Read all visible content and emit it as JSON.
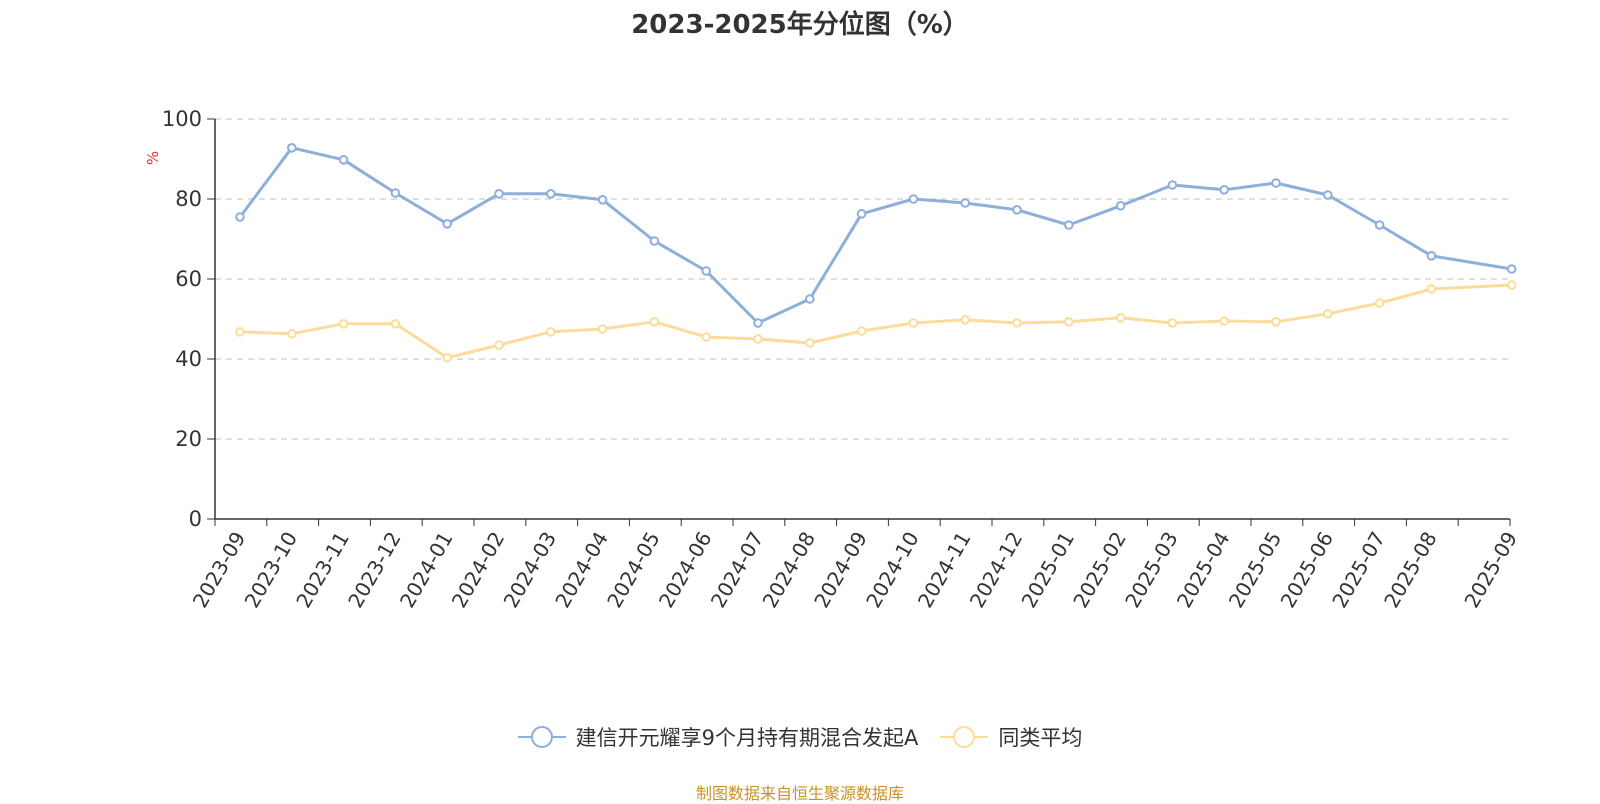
{
  "chart_data": {
    "type": "line",
    "title": "2023-2025年分位图（%）",
    "ylabel": "%",
    "ylim": [
      0,
      100
    ],
    "yticks": [
      0,
      20,
      40,
      60,
      80,
      100
    ],
    "grid": true,
    "legend_position": "bottom",
    "categories": [
      "2023-09",
      "2023-10",
      "2023-11",
      "2023-12",
      "2024-01",
      "2024-02",
      "2024-03",
      "2024-04",
      "2024-05",
      "2024-06",
      "2024-07",
      "2024-08",
      "2024-09",
      "2024-10",
      "2024-11",
      "2024-12",
      "2025-01",
      "2025-02",
      "2025-03",
      "2025-04",
      "2025-05",
      "2025-06",
      "2025-07",
      "2025-08",
      "2025-09"
    ],
    "x_positions": [
      0,
      1,
      2,
      3,
      4,
      5,
      6,
      7,
      8,
      9,
      10,
      11,
      12,
      13,
      14,
      15,
      16,
      17,
      18,
      19,
      20,
      21,
      22,
      23,
      24.55
    ],
    "series": [
      {
        "name": "建信开元耀享9个月持有期混合发起A",
        "color": "#8eaedb",
        "values": [
          75.5,
          92.8,
          89.8,
          81.5,
          73.8,
          81.3,
          81.3,
          79.8,
          69.5,
          62.0,
          49.0,
          55.0,
          76.3,
          80.0,
          79.0,
          77.3,
          73.5,
          78.3,
          83.5,
          82.3,
          84.0,
          81.0,
          73.5,
          65.8,
          62.5
        ]
      },
      {
        "name": "同类平均",
        "color": "#fcdc9a",
        "values": [
          46.8,
          46.3,
          48.8,
          48.8,
          40.3,
          43.5,
          46.8,
          47.5,
          49.3,
          45.5,
          45.0,
          44.0,
          47.0,
          49.0,
          49.8,
          49.0,
          49.3,
          50.3,
          49.0,
          49.5,
          49.3,
          51.3,
          54.0,
          57.5,
          58.5
        ]
      }
    ]
  },
  "footer": {
    "source": "制图数据来自恒生聚源数据库"
  }
}
